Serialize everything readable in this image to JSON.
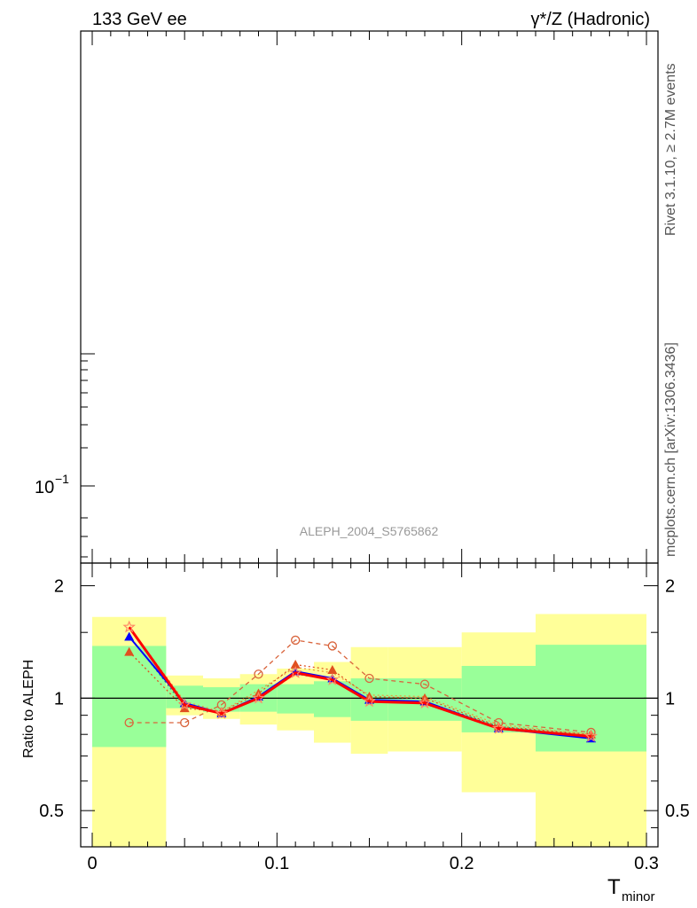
{
  "header": {
    "left": "133 GeV ee",
    "right": "γ*/Z (Hadronic)"
  },
  "side_text": {
    "rivet": "Rivet 3.1.10, ≥ 2.7M events",
    "mcplots": "mcplots.cern.ch [arXiv:1306.3436]"
  },
  "main_panel": {
    "watermark": "ALEPH_2004_S5765862",
    "ytick_label": "10",
    "ytick_exp": "−1"
  },
  "ratio_panel": {
    "ylabel": "Ratio to ALEPH",
    "yticks": [
      "2",
      "1",
      "0.5"
    ],
    "xticks": [
      "0",
      "0.1",
      "0.2",
      "0.3"
    ],
    "xlabel_main": "T",
    "xlabel_sub": "minor"
  },
  "chart_data": {
    "type": "line",
    "x_axis": {
      "min": 0,
      "max": 0.3,
      "ticks": [
        0,
        0.1,
        0.2,
        0.3
      ]
    },
    "ratio_axis": {
      "scale": "log",
      "min": 0.4,
      "max": 2.3,
      "ticks": [
        0.5,
        1,
        2
      ]
    },
    "reference_line": 1,
    "bands": [
      {
        "x0": 0.0,
        "x1": 0.04,
        "inner": [
          0.74,
          1.38
        ],
        "outer": [
          0.35,
          1.65
        ]
      },
      {
        "x0": 0.04,
        "x1": 0.06,
        "inner": [
          0.94,
          1.08
        ],
        "outer": [
          0.9,
          1.15
        ]
      },
      {
        "x0": 0.06,
        "x1": 0.08,
        "inner": [
          0.92,
          1.07
        ],
        "outer": [
          0.88,
          1.13
        ]
      },
      {
        "x0": 0.08,
        "x1": 0.1,
        "inner": [
          0.92,
          1.09
        ],
        "outer": [
          0.85,
          1.16
        ]
      },
      {
        "x0": 0.1,
        "x1": 0.12,
        "inner": [
          0.91,
          1.09
        ],
        "outer": [
          0.82,
          1.2
        ]
      },
      {
        "x0": 0.12,
        "x1": 0.14,
        "inner": [
          0.89,
          1.11
        ],
        "outer": [
          0.76,
          1.25
        ]
      },
      {
        "x0": 0.14,
        "x1": 0.16,
        "inner": [
          0.87,
          1.13
        ],
        "outer": [
          0.71,
          1.37
        ]
      },
      {
        "x0": 0.16,
        "x1": 0.2,
        "inner": [
          0.87,
          1.13
        ],
        "outer": [
          0.72,
          1.37
        ]
      },
      {
        "x0": 0.2,
        "x1": 0.24,
        "inner": [
          0.81,
          1.22
        ],
        "outer": [
          0.56,
          1.5
        ]
      },
      {
        "x0": 0.24,
        "x1": 0.3,
        "inner": [
          0.72,
          1.39
        ],
        "outer": [
          0.35,
          1.68
        ]
      }
    ],
    "series": [
      {
        "color": "#e8a040",
        "width": 1.3,
        "dash": "2,3",
        "marker": "none",
        "x": [
          0.02,
          0.05,
          0.07,
          0.09,
          0.11,
          0.13,
          0.15,
          0.18,
          0.22,
          0.27
        ],
        "y": [
          1.55,
          0.98,
          0.92,
          1.05,
          1.21,
          1.17,
          1.02,
          1.01,
          0.85,
          0.8
        ]
      },
      {
        "color": "#d9643c",
        "width": 1.3,
        "dash": "5,4",
        "marker": "circle",
        "x": [
          0.02,
          0.05,
          0.07,
          0.09,
          0.11,
          0.13,
          0.15,
          0.18,
          0.22,
          0.27
        ],
        "y": [
          0.86,
          0.86,
          0.96,
          1.16,
          1.43,
          1.38,
          1.13,
          1.09,
          0.86,
          0.81
        ]
      },
      {
        "color": "#3a8a7a",
        "width": 1.2,
        "dash": "2,3",
        "marker": "none",
        "x": [
          0.02,
          0.05,
          0.07,
          0.09,
          0.11,
          0.13,
          0.15,
          0.18,
          0.22,
          0.27
        ],
        "y": [
          1.47,
          0.95,
          0.91,
          1.0,
          1.16,
          1.12,
          0.99,
          0.98,
          0.84,
          0.79
        ]
      },
      {
        "color": "#0000ff",
        "width": 2.0,
        "dash": "",
        "marker": "triangle",
        "x": [
          0.02,
          0.05,
          0.07,
          0.09,
          0.11,
          0.13,
          0.15,
          0.18,
          0.22,
          0.27
        ],
        "y": [
          1.46,
          0.97,
          0.91,
          1.01,
          1.18,
          1.13,
          0.99,
          0.98,
          0.83,
          0.78
        ]
      },
      {
        "color": "#e05020",
        "width": 1.3,
        "dash": "2,3",
        "marker": "triangle",
        "x": [
          0.02,
          0.05,
          0.07,
          0.09,
          0.11,
          0.13,
          0.15,
          0.18,
          0.22,
          0.27
        ],
        "y": [
          1.33,
          0.94,
          0.92,
          1.03,
          1.23,
          1.19,
          1.01,
          1.0,
          0.84,
          0.8
        ]
      },
      {
        "color": "#ff0000",
        "width": 3.0,
        "dash": "",
        "marker": "star",
        "x": [
          0.02,
          0.05,
          0.07,
          0.09,
          0.11,
          0.13,
          0.15,
          0.18,
          0.22,
          0.27
        ],
        "y": [
          1.55,
          0.96,
          0.91,
          1.0,
          1.17,
          1.12,
          0.98,
          0.97,
          0.83,
          0.79
        ]
      }
    ]
  }
}
